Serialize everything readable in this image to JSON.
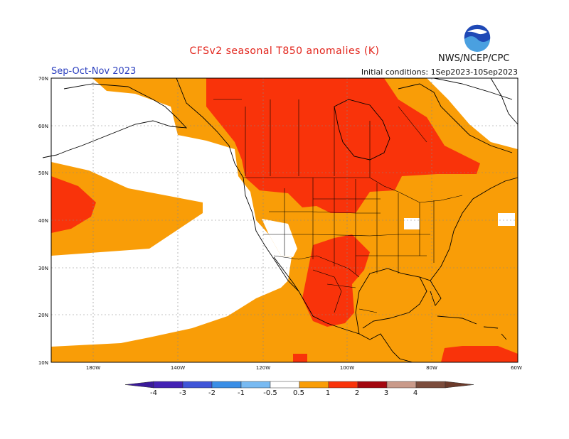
{
  "header": {
    "title": "CFSv2 seasonal T850 anomalies (K)",
    "season": "Sep-Oct-Nov 2023",
    "agency": "NWS/NCEP/CPC",
    "initial_conditions": "Initial conditions: 1Sep2023-10Sep2023",
    "logo_text": "NOAA"
  },
  "map": {
    "lat_labels": [
      "70N",
      "60N",
      "50N",
      "40N",
      "30N",
      "20N",
      "10N"
    ],
    "lon_labels": [
      "180W",
      "140W",
      "120W",
      "100W",
      "80W",
      "60W"
    ]
  },
  "legend": {
    "tick_labels": [
      "-4",
      "-3",
      "-2",
      "-1",
      "-0.5",
      "0.5",
      "1",
      "2",
      "3",
      "4"
    ],
    "colors": [
      "#4321b4",
      "#3f55d8",
      "#3a8ee6",
      "#78baf2",
      "#ffffff",
      "#f99d07",
      "#f9330a",
      "#a3070f",
      "#c99a8a",
      "#7b4c3c"
    ]
  },
  "colors": {
    "anomaly_0_5_to_1": "#f99d07",
    "anomaly_1_to_2": "#f9330a",
    "title_red": "#e2231a",
    "season_blue": "#2b3fbf"
  }
}
